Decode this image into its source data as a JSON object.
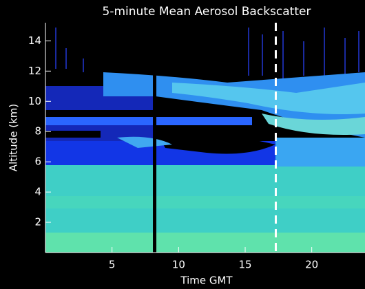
{
  "chart_data": {
    "type": "image",
    "title": "5-minute Mean Aerosol Backscatter",
    "xlabel": "Time GMT",
    "ylabel": "Altitude (km)",
    "xlim": [
      0,
      24
    ],
    "ylim": [
      0,
      15.2
    ],
    "xticks": [
      5,
      10,
      15,
      20
    ],
    "yticks": [
      2,
      4,
      6,
      8,
      10,
      12,
      14
    ],
    "vlines": [
      {
        "x": 8.2,
        "ymax": 12.1,
        "color": "#000000",
        "style": "solid"
      },
      {
        "x": 17.3,
        "color": "#ffffff",
        "style": "dashed"
      }
    ]
  }
}
